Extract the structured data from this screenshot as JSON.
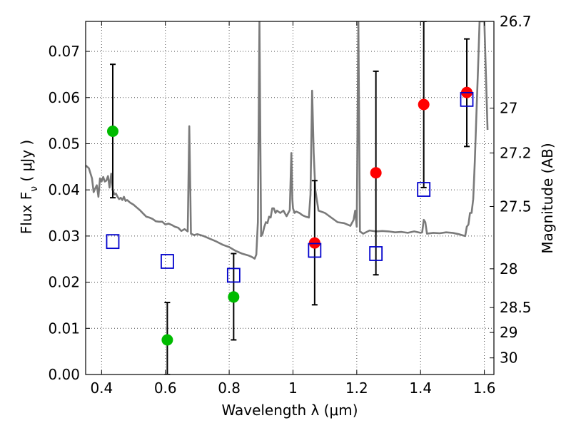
{
  "chart_data": {
    "type": "scatter",
    "xlabel": "Wavelength  λ (μm)",
    "ylabel_left": "Flux  F",
    "ylabel_left_sub": "ν",
    "ylabel_left_unit": " ( μJy )",
    "ylabel_right": "Magnitude (AB)",
    "xlim": [
      0.35,
      1.63
    ],
    "ylim": [
      0.0,
      0.0765
    ],
    "x_ticks": [
      0.4,
      0.6,
      0.8,
      1.0,
      1.2,
      1.4,
      1.6
    ],
    "x_tick_labels": [
      "0.4",
      "0.6",
      "0.8",
      "1",
      "1.2",
      "1.4",
      "1.6"
    ],
    "y_ticks": [
      0.0,
      0.01,
      0.02,
      0.03,
      0.04,
      0.05,
      0.06,
      0.07
    ],
    "y_tick_labels": [
      "0.00",
      "0.01",
      "0.02",
      "0.03",
      "0.04",
      "0.05",
      "0.06",
      "0.07"
    ],
    "right_ticks": [
      {
        "label": "26.7",
        "flux": 0.0765
      },
      {
        "label": "27",
        "flux": 0.0577
      },
      {
        "label": "27.2",
        "flux": 0.048
      },
      {
        "label": "27.5",
        "flux": 0.0364
      },
      {
        "label": "28",
        "flux": 0.0229
      },
      {
        "label": "28.5",
        "flux": 0.0145
      },
      {
        "label": "29",
        "flux": 0.0091
      },
      {
        "label": "30",
        "flux": 0.0036
      }
    ],
    "grid": true,
    "colors": {
      "green": "#00bb00",
      "red": "#ff0000",
      "model": "#7a7a7a",
      "squares": "#0000cc",
      "errorbar": "#000000"
    },
    "series": [
      {
        "marker": "circle",
        "color": "green",
        "points": [
          {
            "x": 0.435,
            "y": 0.0527,
            "ylo": 0.0383,
            "yhi": 0.0672
          },
          {
            "x": 0.606,
            "y": 0.0075,
            "ylo": 0.0,
            "yhi": 0.0156
          },
          {
            "x": 0.814,
            "y": 0.0168,
            "ylo": 0.0075,
            "yhi": 0.0262
          }
        ]
      },
      {
        "marker": "circle",
        "color": "red",
        "points": [
          {
            "x": 1.068,
            "y": 0.0285,
            "ylo": 0.0151,
            "yhi": 0.042
          },
          {
            "x": 1.26,
            "y": 0.0437,
            "ylo": 0.0216,
            "yhi": 0.0657
          },
          {
            "x": 1.41,
            "y": 0.0585,
            "ylo": 0.0405,
            "yhi": 0.0765
          },
          {
            "x": 1.545,
            "y": 0.0611,
            "ylo": 0.0494,
            "yhi": 0.0727
          }
        ]
      },
      {
        "marker": "open-square",
        "color": "squares",
        "points": [
          {
            "x": 0.435,
            "y": 0.0288
          },
          {
            "x": 0.606,
            "y": 0.0245
          },
          {
            "x": 0.814,
            "y": 0.0215
          },
          {
            "x": 1.068,
            "y": 0.0269
          },
          {
            "x": 1.26,
            "y": 0.0262
          },
          {
            "x": 1.41,
            "y": 0.0401
          },
          {
            "x": 1.545,
            "y": 0.0596
          }
        ]
      },
      {
        "marker": "line",
        "color": "model",
        "x": [
          0.35,
          0.36,
          0.37,
          0.375,
          0.38,
          0.385,
          0.39,
          0.395,
          0.4,
          0.405,
          0.41,
          0.415,
          0.42,
          0.425,
          0.43,
          0.435,
          0.44,
          0.445,
          0.45,
          0.455,
          0.46,
          0.465,
          0.47,
          0.475,
          0.48,
          0.49,
          0.5,
          0.51,
          0.52,
          0.53,
          0.54,
          0.55,
          0.56,
          0.57,
          0.58,
          0.59,
          0.6,
          0.61,
          0.62,
          0.63,
          0.64,
          0.65,
          0.66,
          0.67,
          0.675,
          0.678,
          0.68,
          0.69,
          0.7,
          0.72,
          0.74,
          0.76,
          0.78,
          0.8,
          0.82,
          0.84,
          0.86,
          0.87,
          0.875,
          0.88,
          0.885,
          0.89,
          0.895,
          0.9,
          0.905,
          0.91,
          0.915,
          0.92,
          0.925,
          0.93,
          0.935,
          0.94,
          0.945,
          0.95,
          0.96,
          0.97,
          0.98,
          0.99,
          0.995,
          0.998,
          1.0,
          1.005,
          1.01,
          1.02,
          1.03,
          1.04,
          1.05,
          1.055,
          1.06,
          1.065,
          1.07,
          1.08,
          1.1,
          1.12,
          1.14,
          1.16,
          1.18,
          1.19,
          1.195,
          1.2,
          1.205,
          1.21,
          1.22,
          1.24,
          1.26,
          1.28,
          1.3,
          1.32,
          1.34,
          1.36,
          1.38,
          1.4,
          1.405,
          1.41,
          1.415,
          1.42,
          1.44,
          1.46,
          1.48,
          1.5,
          1.52,
          1.53,
          1.535,
          1.54,
          1.545,
          1.55,
          1.555,
          1.56,
          1.565,
          1.57,
          1.575,
          1.58,
          1.585,
          1.59,
          1.595,
          1.6,
          1.605,
          1.61
        ],
        "y": [
          0.0453,
          0.0447,
          0.0425,
          0.0395,
          0.0403,
          0.041,
          0.0385,
          0.0425,
          0.0418,
          0.0428,
          0.0418,
          0.042,
          0.043,
          0.0405,
          0.0435,
          0.04,
          0.039,
          0.0392,
          0.0385,
          0.038,
          0.0383,
          0.0378,
          0.0385,
          0.0376,
          0.0378,
          0.0372,
          0.0368,
          0.0362,
          0.0356,
          0.0349,
          0.0342,
          0.034,
          0.0337,
          0.0332,
          0.0331,
          0.0331,
          0.0325,
          0.0327,
          0.0324,
          0.032,
          0.0318,
          0.0311,
          0.0315,
          0.031,
          0.0538,
          0.04,
          0.0305,
          0.0302,
          0.0304,
          0.03,
          0.0294,
          0.0288,
          0.0281,
          0.0276,
          0.0268,
          0.0262,
          0.0258,
          0.0255,
          0.0253,
          0.0251,
          0.026,
          0.033,
          0.0765,
          0.03,
          0.0305,
          0.032,
          0.033,
          0.0328,
          0.0342,
          0.034,
          0.036,
          0.036,
          0.035,
          0.0355,
          0.035,
          0.0355,
          0.0343,
          0.0356,
          0.048,
          0.038,
          0.036,
          0.035,
          0.0353,
          0.035,
          0.0345,
          0.0342,
          0.034,
          0.039,
          0.0615,
          0.048,
          0.04,
          0.0355,
          0.035,
          0.034,
          0.033,
          0.0328,
          0.0322,
          0.0335,
          0.0355,
          0.032,
          0.0765,
          0.031,
          0.0305,
          0.0312,
          0.031,
          0.0311,
          0.031,
          0.0308,
          0.0309,
          0.0307,
          0.031,
          0.0307,
          0.0308,
          0.0335,
          0.033,
          0.0305,
          0.0307,
          0.0306,
          0.0308,
          0.0307,
          0.0304,
          0.0302,
          0.0301,
          0.03,
          0.032,
          0.0325,
          0.035,
          0.035,
          0.038,
          0.046,
          0.056,
          0.066,
          0.0765,
          0.0765,
          0.0765,
          0.0765,
          0.065,
          0.053
        ]
      }
    ]
  }
}
